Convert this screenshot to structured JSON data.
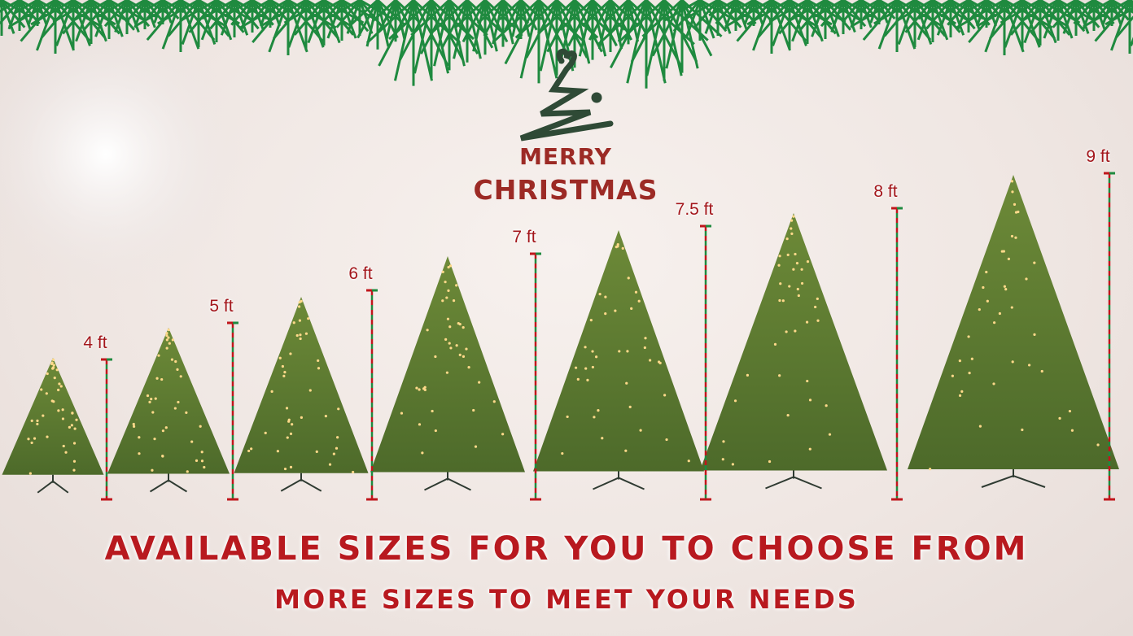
{
  "logo": {
    "line1": "MERRY",
    "line2": "CHRISTMAS"
  },
  "sizes": [
    "4 ft",
    "5 ft",
    "6 ft",
    "7 ft",
    "7.5 ft",
    "8 ft",
    "9 ft"
  ],
  "headline": "AVAILABLE SIZES FOR YOU TO CHOOSE FROM",
  "subheadline": "MORE SIZES TO MEET YOUR NEEDS",
  "colors": {
    "red": "#b8191f",
    "green": "#1f7a3a",
    "tree": "#5b7a2e"
  }
}
